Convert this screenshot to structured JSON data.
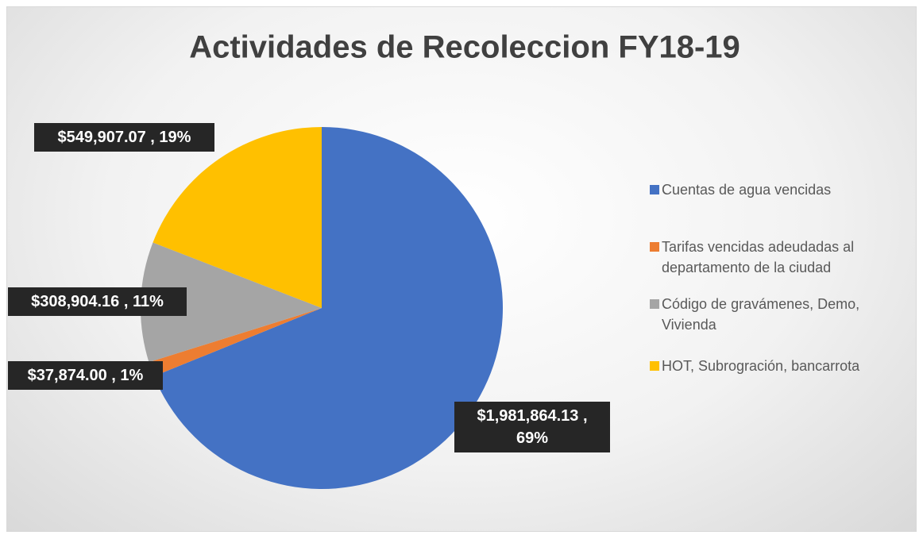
{
  "chart_data": {
    "type": "pie",
    "title": "Actividades de Recoleccion FY18-19",
    "categories": [
      "Cuentas de agua vencidas",
      "Tarifas vencidas adeudadas al departamento de la ciudad",
      "Código de gravámenes, Demo, Vivienda",
      "HOT, Subrogración, bancarrota"
    ],
    "values": [
      1981864.13,
      37874.0,
      308904.16,
      549907.07
    ],
    "value_labels": [
      "$1,981,864.13 , 69%",
      "$37,874.00 , 1%",
      "$308,904.16 , 11%",
      "$549,907.07 , 19%"
    ],
    "colors": [
      "#4472c4",
      "#ed7d31",
      "#a5a5a5",
      "#ffc000"
    ],
    "legend": "right"
  }
}
